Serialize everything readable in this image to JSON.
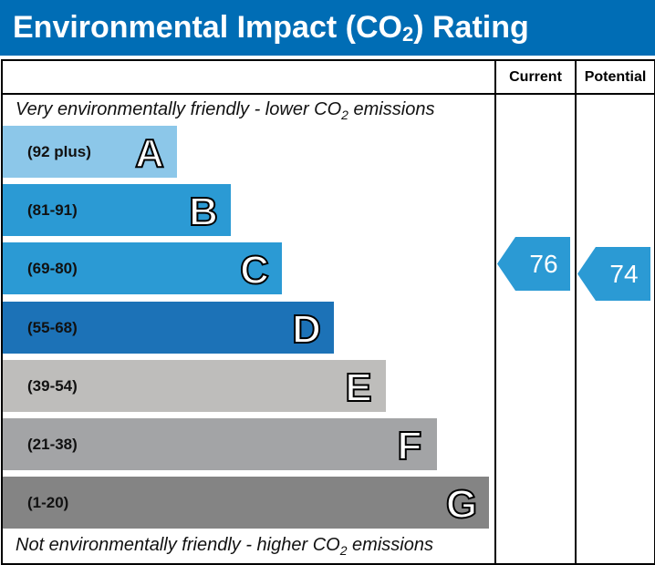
{
  "title": {
    "main": "Environmental Impact (CO",
    "sub": "2",
    "end": ") Rating"
  },
  "columns": {
    "current": "Current",
    "potential": "Potential"
  },
  "captions": {
    "top_pre": "Very environmentally friendly - lower CO",
    "top_post": " emissions",
    "bottom_pre": "Not environmentally friendly - higher CO",
    "bottom_post": " emissions",
    "sub": "2"
  },
  "chart_data": {
    "type": "bar",
    "title": "Environmental Impact (CO2) Rating",
    "bands": [
      {
        "letter": "A",
        "range": "(92 plus)",
        "color": "#8cc7e9"
      },
      {
        "letter": "B",
        "range": "(81-91)",
        "color": "#2b9ad4"
      },
      {
        "letter": "C",
        "range": "(69-80)",
        "color": "#2b9ad4"
      },
      {
        "letter": "D",
        "range": "(55-68)",
        "color": "#1c72b7"
      },
      {
        "letter": "E",
        "range": "(39-54)",
        "color": "#bebdbb"
      },
      {
        "letter": "F",
        "range": "(21-38)",
        "color": "#a3a4a6"
      },
      {
        "letter": "G",
        "range": "(1-20)",
        "color": "#848484"
      }
    ],
    "current": {
      "value": "76",
      "band": "C",
      "color": "#2b9ad4"
    },
    "potential": {
      "value": "74",
      "band": "C",
      "color": "#2b9ad4"
    }
  }
}
